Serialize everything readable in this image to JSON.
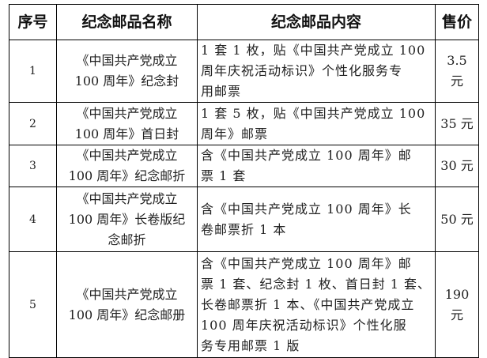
{
  "table": {
    "headers": [
      "序号",
      "纪念邮品名称",
      "纪念邮品内容",
      "售价"
    ],
    "rows": [
      {
        "no": "1",
        "name": "《中国共产党成立\n100 周年》纪念封",
        "content": "1 套 1 枚，贴《中国共产党成立 100\n周年庆祝活动标识》个性化服务专\n用邮票",
        "price": "3.5 元"
      },
      {
        "no": "2",
        "name": "《中国共产党成立\n100 周年》首日封",
        "content": "1 套 5 枚，贴《中国共产党成立 100\n周年》邮票",
        "price": "35 元"
      },
      {
        "no": "3",
        "name": "《中国共产党成立\n100 周年》纪念邮折",
        "content": "含《中国共产党成立 100 周年》邮\n票 1 套",
        "price": "30 元"
      },
      {
        "no": "4",
        "name": "《中国共产党成立\n100 周年》长卷版纪\n念邮折",
        "content": "含《中国共产党成立 100 周年》长\n卷邮票折 1 本",
        "price": "50 元"
      },
      {
        "no": "5",
        "name": "《中国共产党成立\n100 周年》纪念邮册",
        "content": "含《中国共产党成立 100 周年》邮\n票 1 套、纪念封 1 枚、首日封 1 套、\n长卷邮票折 1 本、《中国共产党成立\n100 周年庆祝活动标识》个性化服\n务专用邮票 1 版",
        "price": "190 元"
      }
    ]
  }
}
